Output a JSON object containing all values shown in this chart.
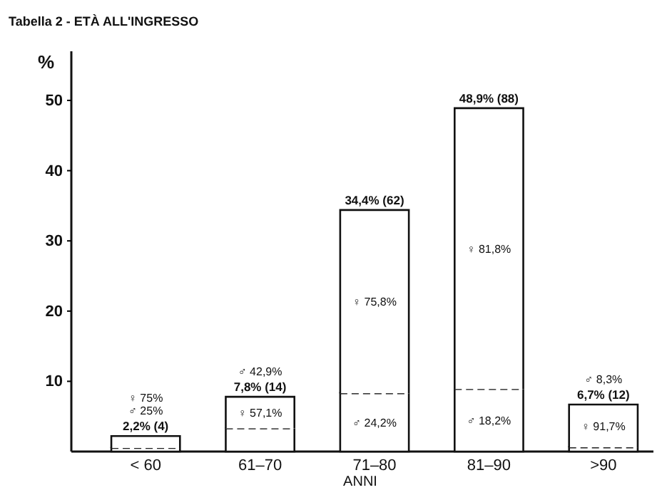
{
  "chart_data": {
    "type": "bar",
    "title": "Tabella 2 - ETÀ ALL'INGRESSO",
    "ylabel": "%",
    "xlabel": "ANNI",
    "stacked": true,
    "categories": [
      "< 60",
      "61–70",
      "71–80",
      "81–90",
      ">90"
    ],
    "series": [
      {
        "color": "#ffffff",
        "values": [
          0.5,
          3.3,
          8.3,
          8.9,
          0.6
        ]
      },
      {
        "color": "#ffffff",
        "values": [
          1.7,
          4.5,
          26.1,
          40.0,
          6.1
        ]
      }
    ],
    "totals": [
      "2,2% (4)",
      "7,8% (14)",
      "34,4% (62)",
      "48,9% (88)",
      "6,7% (12)"
    ],
    "annotations": [
      "♀ 75%",
      "♂ 25%",
      "♀ 57,1%",
      "♂ 42,9%",
      "♀ 75,8%",
      "♂ 24,2%",
      "♀ 81,8%",
      "♂ 18,2%",
      "♀ 91,7%",
      "♂ 8,3%"
    ],
    "ylim": [
      0,
      57
    ],
    "yticks": [
      10,
      20,
      30,
      40,
      50
    ]
  }
}
